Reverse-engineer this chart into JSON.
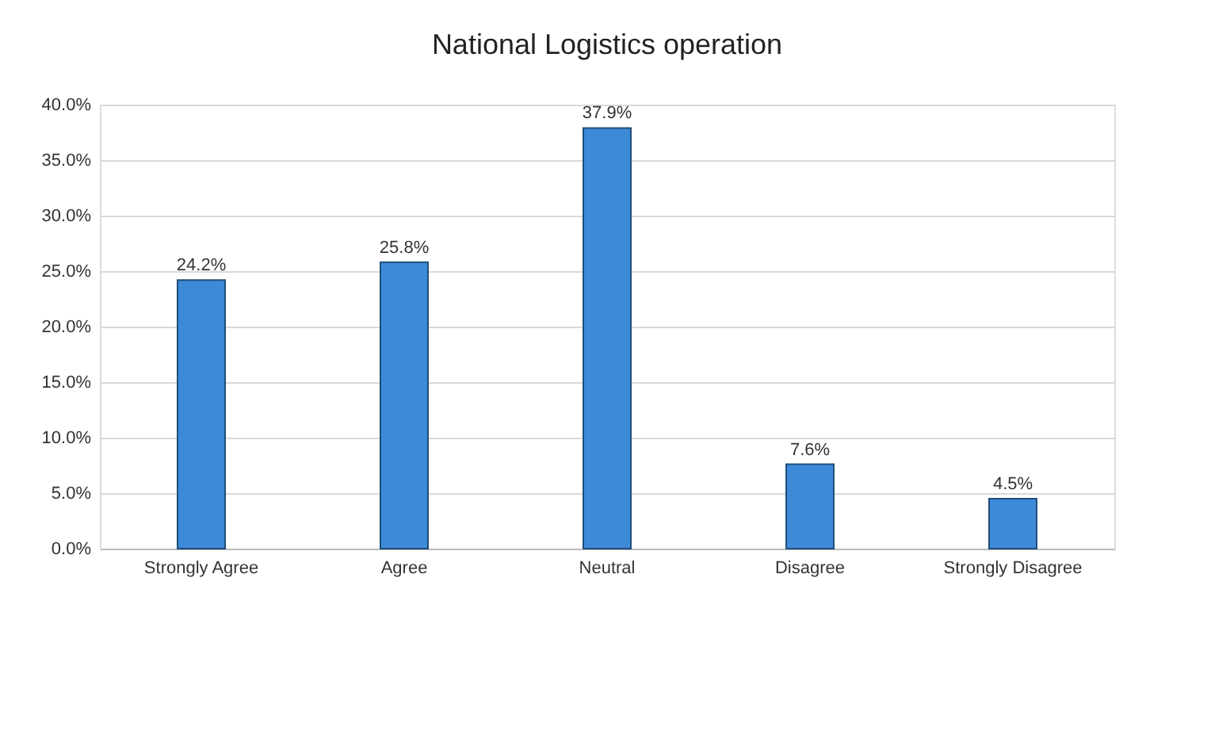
{
  "chart_data": {
    "type": "bar",
    "title": "National Logistics operation",
    "categories": [
      "Strongly Agree",
      "Agree",
      "Neutral",
      "Disagree",
      "Strongly Disagree"
    ],
    "values": [
      24.2,
      25.8,
      37.9,
      7.6,
      4.5
    ],
    "value_labels": [
      "24.2%",
      "25.8%",
      "37.9%",
      "7.6%",
      "4.5%"
    ],
    "color": "#3d8ad8",
    "ylim": [
      0,
      40
    ],
    "yticks": [
      {
        "value": 0,
        "label": "0.0%"
      },
      {
        "value": 5,
        "label": "5.0%"
      },
      {
        "value": 10,
        "label": "10.0%"
      },
      {
        "value": 15,
        "label": "15.0%"
      },
      {
        "value": 20,
        "label": "20.0%"
      },
      {
        "value": 25,
        "label": "25.0%"
      },
      {
        "value": 30,
        "label": "30.0%"
      },
      {
        "value": 35,
        "label": "35.0%"
      },
      {
        "value": 40,
        "label": "40.0%"
      }
    ],
    "grid": "y"
  }
}
